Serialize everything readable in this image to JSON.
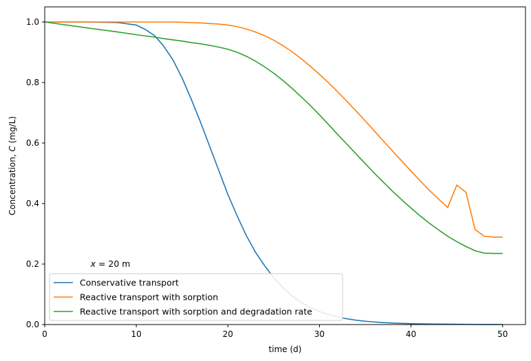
{
  "chart_data": {
    "type": "line",
    "title": "",
    "xlabel": "time (d)",
    "ylabel": "Concentration, C (mg/L)",
    "xlim": [
      0,
      52.5
    ],
    "ylim": [
      0,
      1.05
    ],
    "x_ticks": [
      0,
      10,
      20,
      30,
      40,
      50
    ],
    "y_ticks": [
      0.0,
      0.2,
      0.4,
      0.6,
      0.8,
      1.0
    ],
    "x_tick_labels": [
      "0",
      "10",
      "20",
      "30",
      "40",
      "50"
    ],
    "y_tick_labels": [
      "0.0",
      "0.2",
      "0.4",
      "0.6",
      "0.8",
      "1.0"
    ],
    "grid": false,
    "legend_position": "lower-left",
    "annotation": {
      "var": "x",
      "rest": " = 20 m",
      "x": 5,
      "y": 0.2
    },
    "x": [
      0,
      5,
      8,
      10,
      11,
      12,
      13,
      14,
      15,
      16,
      17,
      18,
      19,
      20,
      21,
      22,
      23,
      24,
      25,
      26,
      27,
      28,
      29,
      30,
      31,
      32,
      33,
      34,
      35,
      36,
      37,
      38,
      39,
      40,
      41,
      42,
      43,
      44,
      45,
      46,
      47,
      48,
      49,
      50
    ],
    "series": [
      {
        "name": "Conservative transport",
        "color": "#1f77b4",
        "values": [
          1.0,
          1.0,
          0.998,
          0.99,
          0.975,
          0.955,
          0.92,
          0.875,
          0.815,
          0.745,
          0.67,
          0.59,
          0.51,
          0.43,
          0.36,
          0.295,
          0.24,
          0.195,
          0.155,
          0.122,
          0.095,
          0.073,
          0.056,
          0.043,
          0.033,
          0.025,
          0.019,
          0.0145,
          0.011,
          0.0085,
          0.0065,
          0.005,
          0.0038,
          0.003,
          0.0024,
          0.0019,
          0.0015,
          0.0012,
          0.001,
          0.0008,
          0.0006,
          0.0005,
          0.0004,
          0.0003
        ]
      },
      {
        "name": "Reactive transport with sorption",
        "color": "#ff7f0e",
        "values": [
          1.0,
          1.0,
          1.0,
          1.0,
          1.0,
          1.0,
          1.0,
          1.0,
          0.999,
          0.998,
          0.997,
          0.995,
          0.993,
          0.99,
          0.985,
          0.977,
          0.967,
          0.955,
          0.94,
          0.922,
          0.902,
          0.879,
          0.854,
          0.827,
          0.799,
          0.769,
          0.738,
          0.706,
          0.673,
          0.64,
          0.606,
          0.573,
          0.54,
          0.507,
          0.475,
          0.444,
          0.415,
          0.387,
          0.461,
          0.437,
          0.314,
          0.292,
          0.289,
          0.289
        ]
      },
      {
        "name": "Reactive transport with sorption and degradation rate",
        "color": "#2ca02c",
        "values": [
          1.0,
          0.979,
          0.967,
          0.958,
          0.954,
          0.95,
          0.945,
          0.941,
          0.937,
          0.932,
          0.928,
          0.923,
          0.917,
          0.91,
          0.9,
          0.887,
          0.871,
          0.852,
          0.831,
          0.807,
          0.781,
          0.753,
          0.724,
          0.693,
          0.661,
          0.628,
          0.596,
          0.564,
          0.532,
          0.5,
          0.47,
          0.44,
          0.412,
          0.385,
          0.359,
          0.335,
          0.313,
          0.292,
          0.274,
          0.258,
          0.244,
          0.236,
          0.235,
          0.235
        ]
      }
    ]
  }
}
